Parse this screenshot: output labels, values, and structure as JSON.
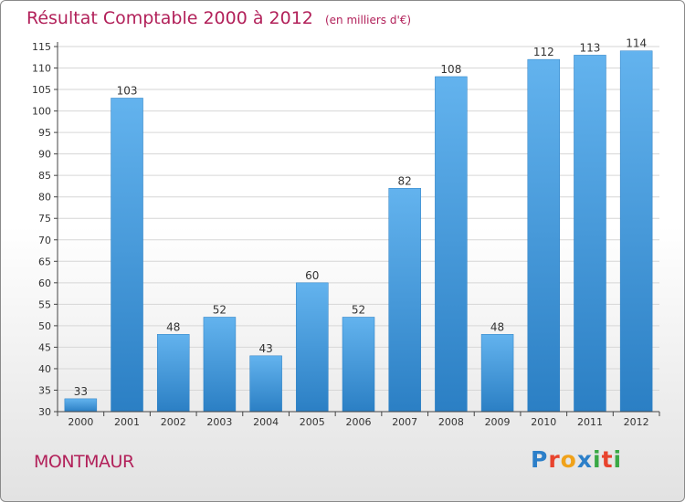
{
  "header": {
    "title": "Résultat Comptable 2000 à 2012",
    "subtitle": "(en milliers d'€)"
  },
  "footer": {
    "commune": "MONTMAUR",
    "logo": "Proxiti",
    "logo_colors": [
      "#2c7fc9",
      "#e8432d",
      "#f0a21a",
      "#2c7fc9",
      "#3aa845",
      "#e8432d",
      "#3aa845"
    ]
  },
  "colors": {
    "title": "#b2215a",
    "bar_light": "#63b3ee",
    "bar_dark": "#2b7fc4",
    "grid": "#d6d6d6"
  },
  "chart_data": {
    "type": "bar",
    "title": "Résultat Comptable 2000 à 2012",
    "subtitle": "(en milliers d'€)",
    "categories": [
      "2000",
      "2001",
      "2002",
      "2003",
      "2004",
      "2005",
      "2006",
      "2007",
      "2008",
      "2009",
      "2010",
      "2011",
      "2012"
    ],
    "values": [
      33,
      103,
      48,
      52,
      43,
      60,
      52,
      82,
      108,
      48,
      112,
      113,
      114
    ],
    "ylim": [
      30,
      115
    ],
    "yticks": [
      30,
      35,
      40,
      45,
      50,
      55,
      60,
      65,
      70,
      75,
      80,
      85,
      90,
      95,
      100,
      105,
      110,
      115
    ],
    "grid": true,
    "data_labels": true
  }
}
